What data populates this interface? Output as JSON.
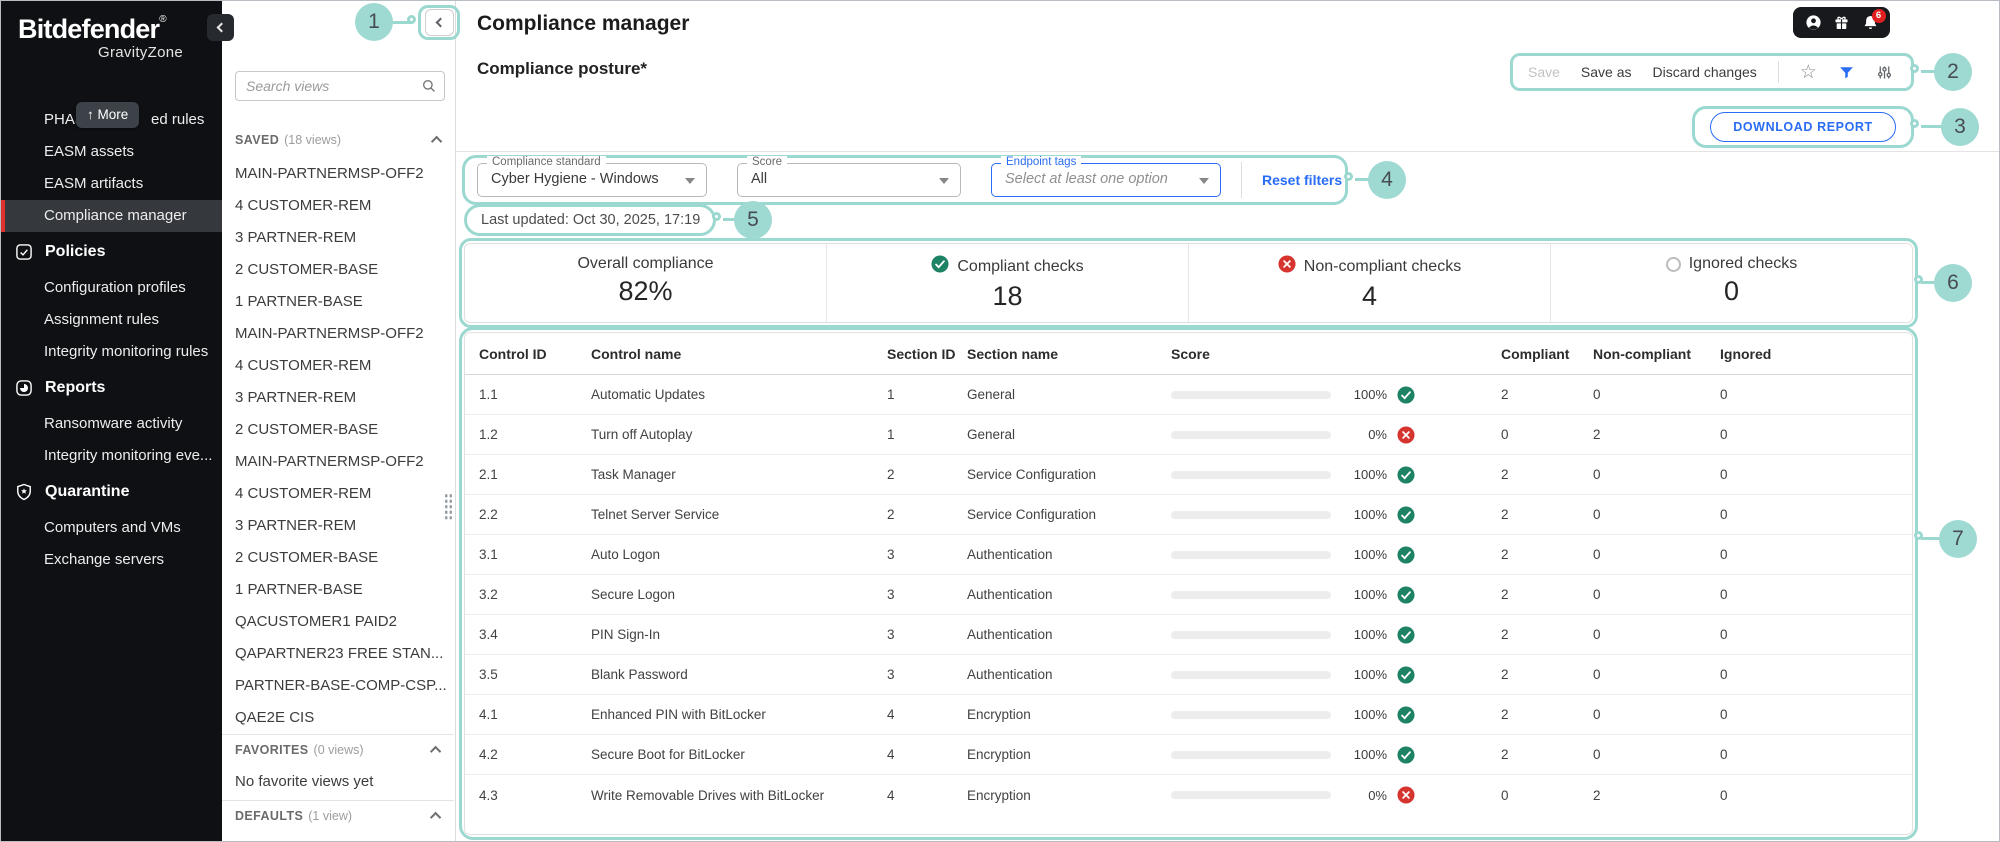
{
  "colors": {
    "teal_annotation": "#9bd8d0",
    "accent_blue": "#2a6df5",
    "green": "#1e8264",
    "red": "#d6352f",
    "brand_red": "#e0312e",
    "sidebar_bg": "#0e1013"
  },
  "annotations": {
    "labels": [
      "1",
      "2",
      "3",
      "4",
      "5",
      "6",
      "7"
    ]
  },
  "sidebar": {
    "logo": {
      "brand": "Bitdefender",
      "reg": "®",
      "product": "GravityZone"
    },
    "phasr_left": "PHAS.",
    "phasr_right": "ed rules",
    "more_tooltip": "↑ More",
    "items": [
      {
        "kind": "item",
        "label": "EASM assets"
      },
      {
        "kind": "item",
        "label": "EASM artifacts"
      },
      {
        "kind": "item",
        "label": "Compliance manager",
        "selected": true
      },
      {
        "kind": "section",
        "label": "Policies",
        "icon": "policies-icon"
      },
      {
        "kind": "item",
        "label": "Configuration profiles"
      },
      {
        "kind": "item",
        "label": "Assignment rules"
      },
      {
        "kind": "item",
        "label": "Integrity monitoring rules"
      },
      {
        "kind": "section",
        "label": "Reports",
        "icon": "reports-icon"
      },
      {
        "kind": "item",
        "label": "Ransomware activity"
      },
      {
        "kind": "item",
        "label": "Integrity monitoring eve..."
      },
      {
        "kind": "section",
        "label": "Quarantine",
        "icon": "quarantine-icon"
      },
      {
        "kind": "item",
        "label": "Computers and VMs"
      },
      {
        "kind": "item",
        "label": "Exchange servers"
      }
    ]
  },
  "views_panel": {
    "search_placeholder": "Search views",
    "saved": {
      "title": "SAVED",
      "count": "(18 views)",
      "items": [
        "MAIN-PARTNERMSP-OFF2",
        "4 CUSTOMER-REM",
        "3 PARTNER-REM",
        "2 CUSTOMER-BASE",
        "1 PARTNER-BASE",
        "MAIN-PARTNERMSP-OFF2",
        "4 CUSTOMER-REM",
        "3 PARTNER-REM",
        "2 CUSTOMER-BASE",
        "MAIN-PARTNERMSP-OFF2",
        "4 CUSTOMER-REM",
        "3 PARTNER-REM",
        "2 CUSTOMER-BASE",
        "1 PARTNER-BASE",
        "QACUSTOMER1 PAID2",
        "QAPARTNER23 FREE STAN...",
        "PARTNER-BASE-COMP-CSP...",
        "QAE2E CIS"
      ]
    },
    "favorites": {
      "title": "FAVORITES",
      "count": "(0 views)",
      "empty": "No favorite views yet"
    },
    "defaults": {
      "title": "DEFAULTS",
      "count": "(1 view)"
    }
  },
  "header": {
    "title": "Compliance manager",
    "subtitle": "Compliance posture*",
    "bell_badge": "6"
  },
  "toolbar": {
    "save": "Save",
    "save_as": "Save as",
    "discard": "Discard changes"
  },
  "buttons": {
    "download_report": "DOWNLOAD REPORT"
  },
  "filters": {
    "compliance_standard": {
      "label": "Compliance standard",
      "value": "Cyber Hygiene - Windows"
    },
    "score": {
      "label": "Score",
      "value": "All"
    },
    "endpoint_tags": {
      "label": "Endpoint tags",
      "placeholder": "Select at least one option"
    },
    "reset": "Reset filters"
  },
  "last_updated": "Last updated: Oct 30, 2025, 17:19",
  "stats": {
    "overall": {
      "label": "Overall compliance",
      "value": "82%"
    },
    "compliant": {
      "label": "Compliant checks",
      "value": "18"
    },
    "non_compliant": {
      "label": "Non-compliant checks",
      "value": "4"
    },
    "ignored": {
      "label": "Ignored checks",
      "value": "0"
    }
  },
  "table": {
    "headers": [
      "Control ID",
      "Control name",
      "Section ID",
      "Section name",
      "Score",
      "Compliant",
      "Non-compliant",
      "Ignored"
    ],
    "rows": [
      {
        "control_id": "1.1",
        "control_name": "Automatic Updates",
        "section_id": "1",
        "section_name": "General",
        "score_pct": 100,
        "score_label": "100%",
        "status": "pass",
        "compliant": "2",
        "non_compliant": "0",
        "ignored": "0"
      },
      {
        "control_id": "1.2",
        "control_name": "Turn off Autoplay",
        "section_id": "1",
        "section_name": "General",
        "score_pct": 0,
        "score_label": "0%",
        "status": "fail",
        "compliant": "0",
        "non_compliant": "2",
        "ignored": "0"
      },
      {
        "control_id": "2.1",
        "control_name": "Task Manager",
        "section_id": "2",
        "section_name": "Service Configuration",
        "score_pct": 100,
        "score_label": "100%",
        "status": "pass",
        "compliant": "2",
        "non_compliant": "0",
        "ignored": "0"
      },
      {
        "control_id": "2.2",
        "control_name": "Telnet Server Service",
        "section_id": "2",
        "section_name": "Service Configuration",
        "score_pct": 100,
        "score_label": "100%",
        "status": "pass",
        "compliant": "2",
        "non_compliant": "0",
        "ignored": "0"
      },
      {
        "control_id": "3.1",
        "control_name": "Auto Logon",
        "section_id": "3",
        "section_name": "Authentication",
        "score_pct": 100,
        "score_label": "100%",
        "status": "pass",
        "compliant": "2",
        "non_compliant": "0",
        "ignored": "0"
      },
      {
        "control_id": "3.2",
        "control_name": "Secure Logon",
        "section_id": "3",
        "section_name": "Authentication",
        "score_pct": 100,
        "score_label": "100%",
        "status": "pass",
        "compliant": "2",
        "non_compliant": "0",
        "ignored": "0"
      },
      {
        "control_id": "3.4",
        "control_name": "PIN Sign-In",
        "section_id": "3",
        "section_name": "Authentication",
        "score_pct": 100,
        "score_label": "100%",
        "status": "pass",
        "compliant": "2",
        "non_compliant": "0",
        "ignored": "0"
      },
      {
        "control_id": "3.5",
        "control_name": "Blank Password",
        "section_id": "3",
        "section_name": "Authentication",
        "score_pct": 100,
        "score_label": "100%",
        "status": "pass",
        "compliant": "2",
        "non_compliant": "0",
        "ignored": "0"
      },
      {
        "control_id": "4.1",
        "control_name": "Enhanced PIN with BitLocker",
        "section_id": "4",
        "section_name": "Encryption",
        "score_pct": 100,
        "score_label": "100%",
        "status": "pass",
        "compliant": "2",
        "non_compliant": "0",
        "ignored": "0"
      },
      {
        "control_id": "4.2",
        "control_name": "Secure Boot for BitLocker",
        "section_id": "4",
        "section_name": "Encryption",
        "score_pct": 100,
        "score_label": "100%",
        "status": "pass",
        "compliant": "2",
        "non_compliant": "0",
        "ignored": "0"
      },
      {
        "control_id": "4.3",
        "control_name": "Write Removable Drives with BitLocker",
        "section_id": "4",
        "section_name": "Encryption",
        "score_pct": 0,
        "score_label": "0%",
        "status": "fail",
        "compliant": "0",
        "non_compliant": "2",
        "ignored": "0"
      }
    ]
  }
}
